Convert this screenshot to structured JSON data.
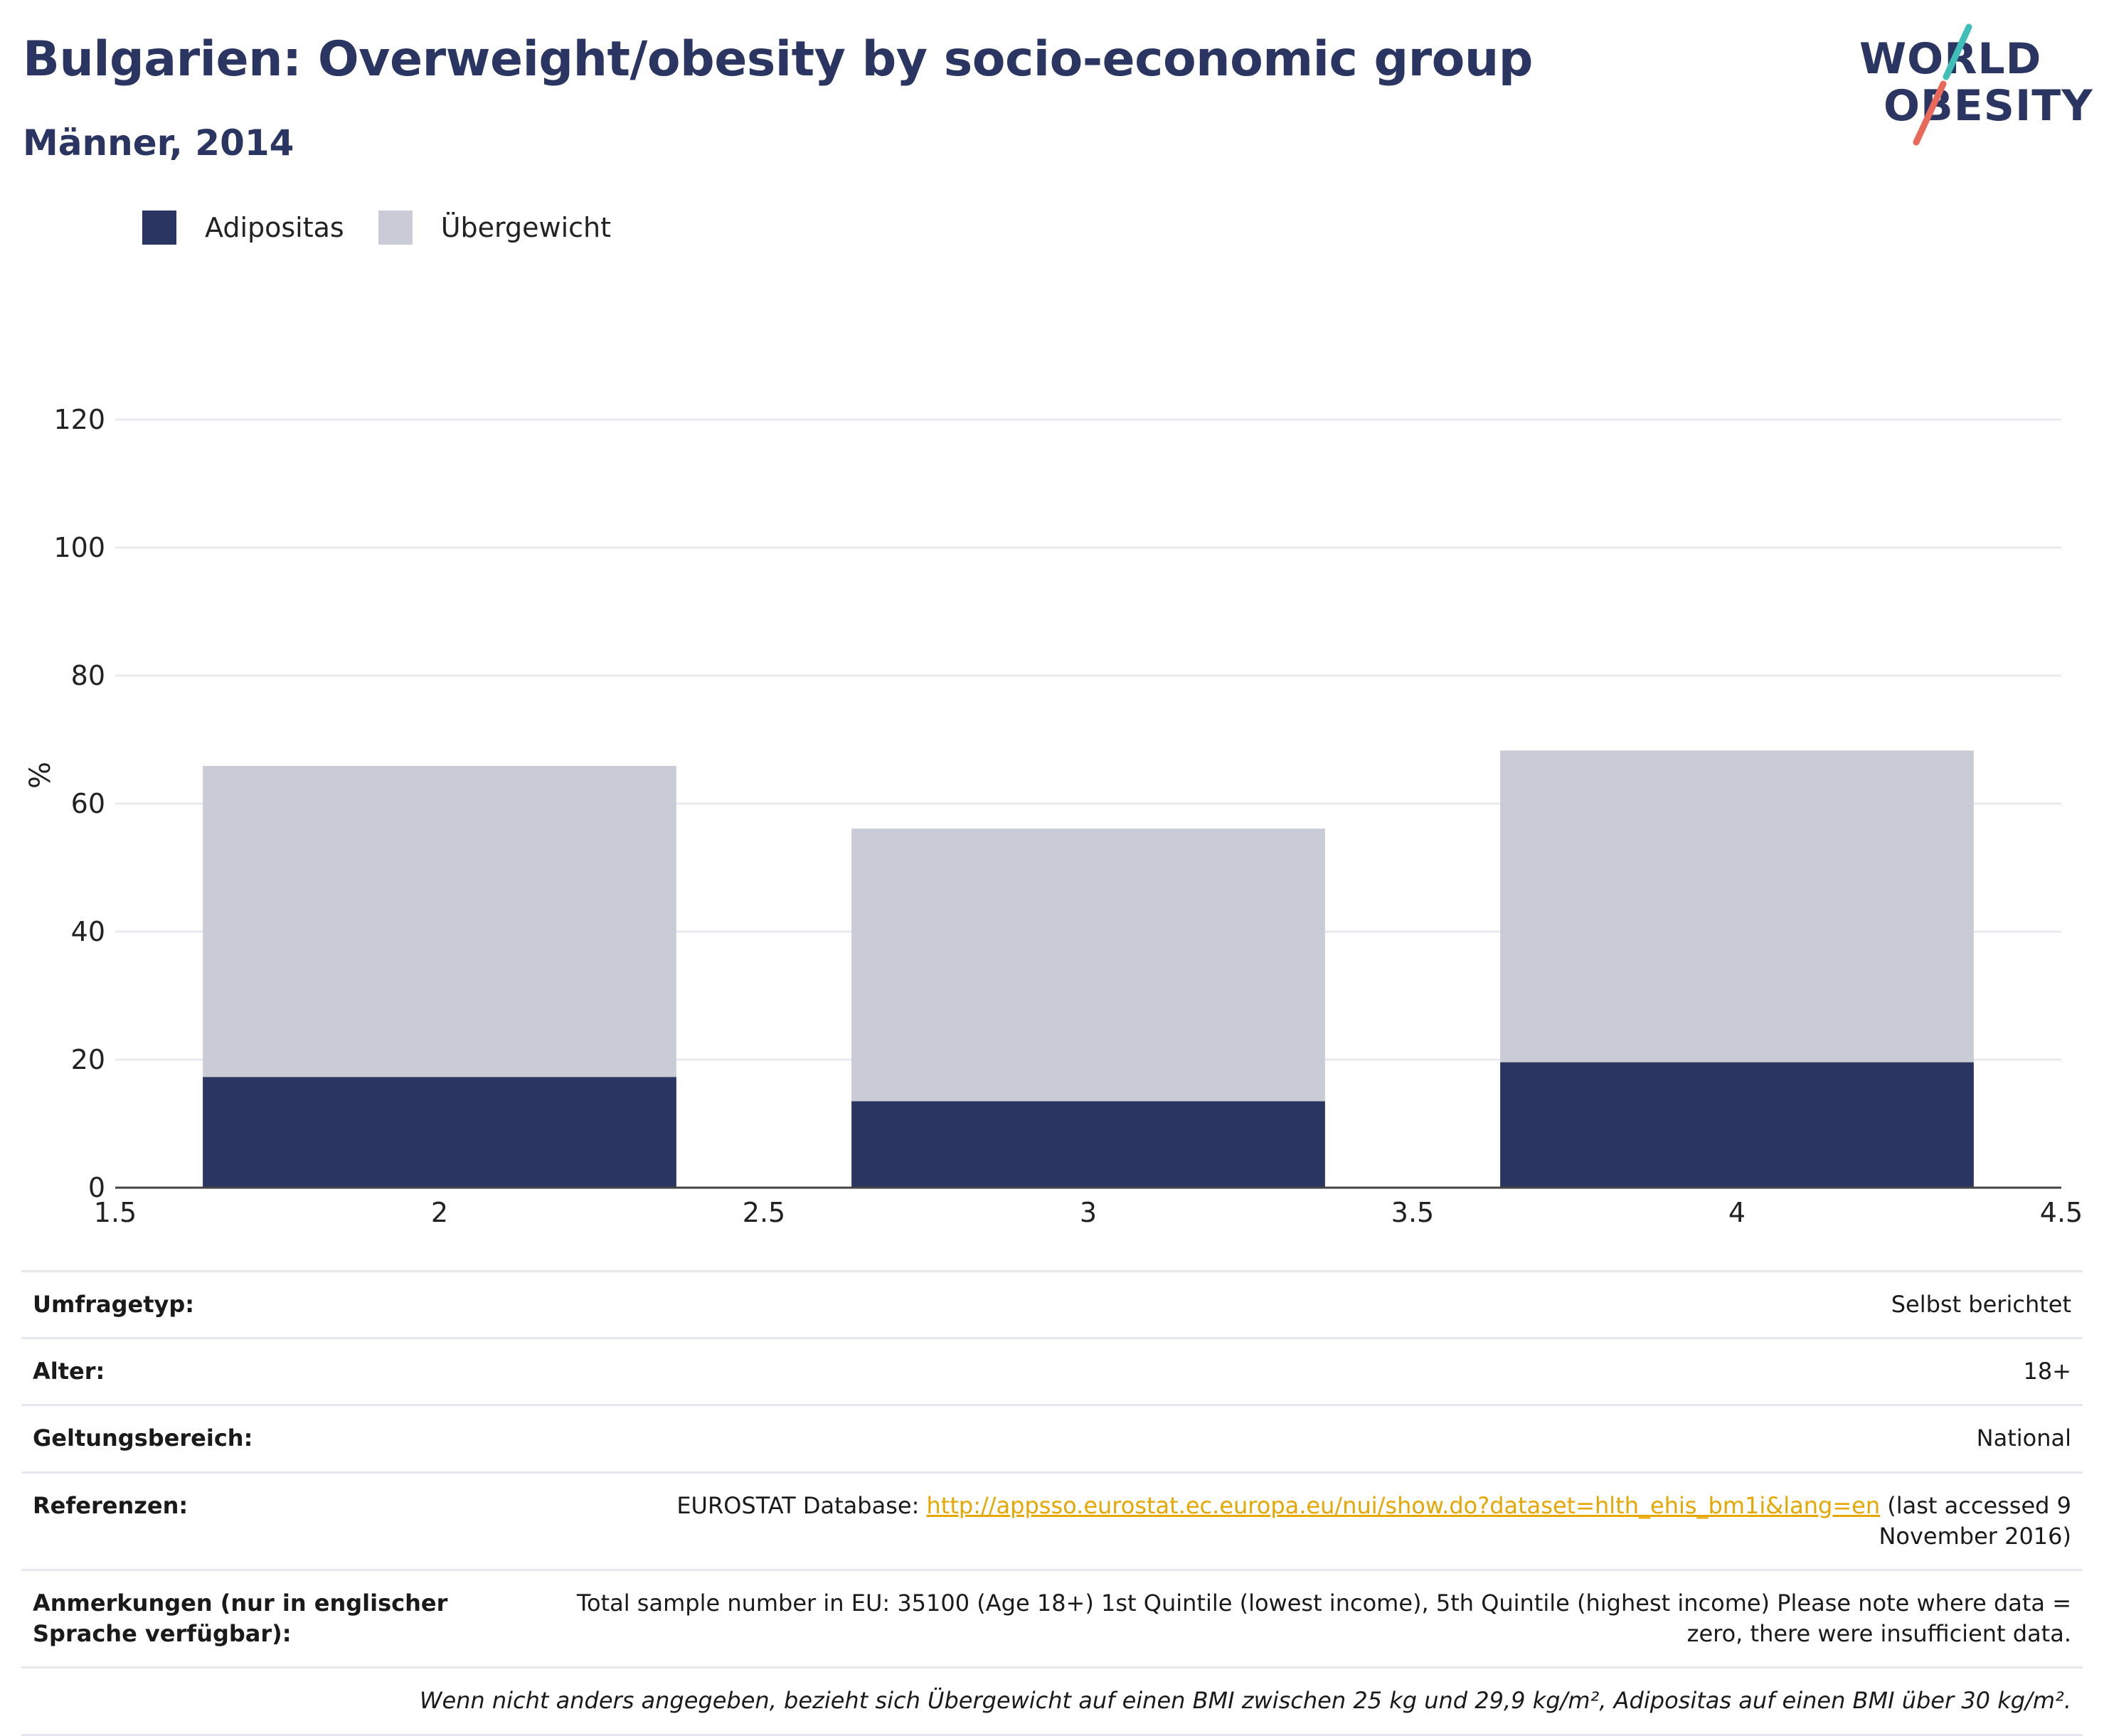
{
  "header": {
    "title": "Bulgarien: Overweight/obesity by socio-economic group",
    "subtitle": "Männer, 2014"
  },
  "logo": {
    "line1": "WORLD",
    "line2": "OBESITY",
    "colors": {
      "text": "#2b3561",
      "accent_top": "#3fbfb7",
      "accent_bottom": "#e8685a"
    }
  },
  "colors": {
    "obesity": "#2b3561",
    "overweight": "#c9ccd7",
    "link": "#e8a700"
  },
  "legend": {
    "items": [
      {
        "label": "Adipositas",
        "color": "#2b3561"
      },
      {
        "label": "Übergewicht",
        "color": "#c9ccd7"
      }
    ]
  },
  "chart_data": {
    "type": "bar",
    "stacked": true,
    "x": [
      2,
      3,
      4
    ],
    "series": [
      {
        "name": "Adipositas",
        "values": [
          17.3,
          13.5,
          19.6
        ],
        "color": "#2b3561"
      },
      {
        "name": "Übergewicht",
        "values": [
          48.6,
          42.6,
          48.7
        ],
        "color": "#c9ccd7"
      }
    ],
    "xlim": [
      1.5,
      4.5
    ],
    "ylim": [
      0,
      120
    ],
    "xticks": [
      "1.5",
      "2",
      "2.5",
      "3",
      "3.5",
      "4",
      "4.5"
    ],
    "yticks": [
      "0",
      "20",
      "40",
      "60",
      "80",
      "100",
      "120"
    ],
    "ylabel": "%",
    "xlabel": "",
    "grid": true,
    "legend_position": "top-left"
  },
  "info": {
    "survey_type": {
      "label": "Umfragetyp:",
      "value": "Selbst berichtet"
    },
    "age": {
      "label": "Alter:",
      "value": "18+"
    },
    "scope": {
      "label": "Geltungsbereich:",
      "value": "National"
    },
    "references": {
      "label": "Referenzen:",
      "prefix": "EUROSTAT Database: ",
      "link": "http://appsso.eurostat.ec.europa.eu/nui/show.do?dataset=hlth_ehis_bm1i&lang=en",
      "suffix": " (last accessed 9 November 2016)"
    },
    "notes": {
      "label": "Anmerkungen (nur in englischer Sprache verfügbar):",
      "value": "Total sample number in EU: 35100 (Age 18+) 1st Quintile (lowest income), 5th Quintile (highest income) Please note where data = zero, there were insufficient data."
    },
    "footnote": "Wenn nicht anders angegeben, bezieht sich Übergewicht auf einen BMI zwischen 25 kg und 29,9 kg/m², Adipositas auf einen BMI über 30 kg/m²."
  }
}
